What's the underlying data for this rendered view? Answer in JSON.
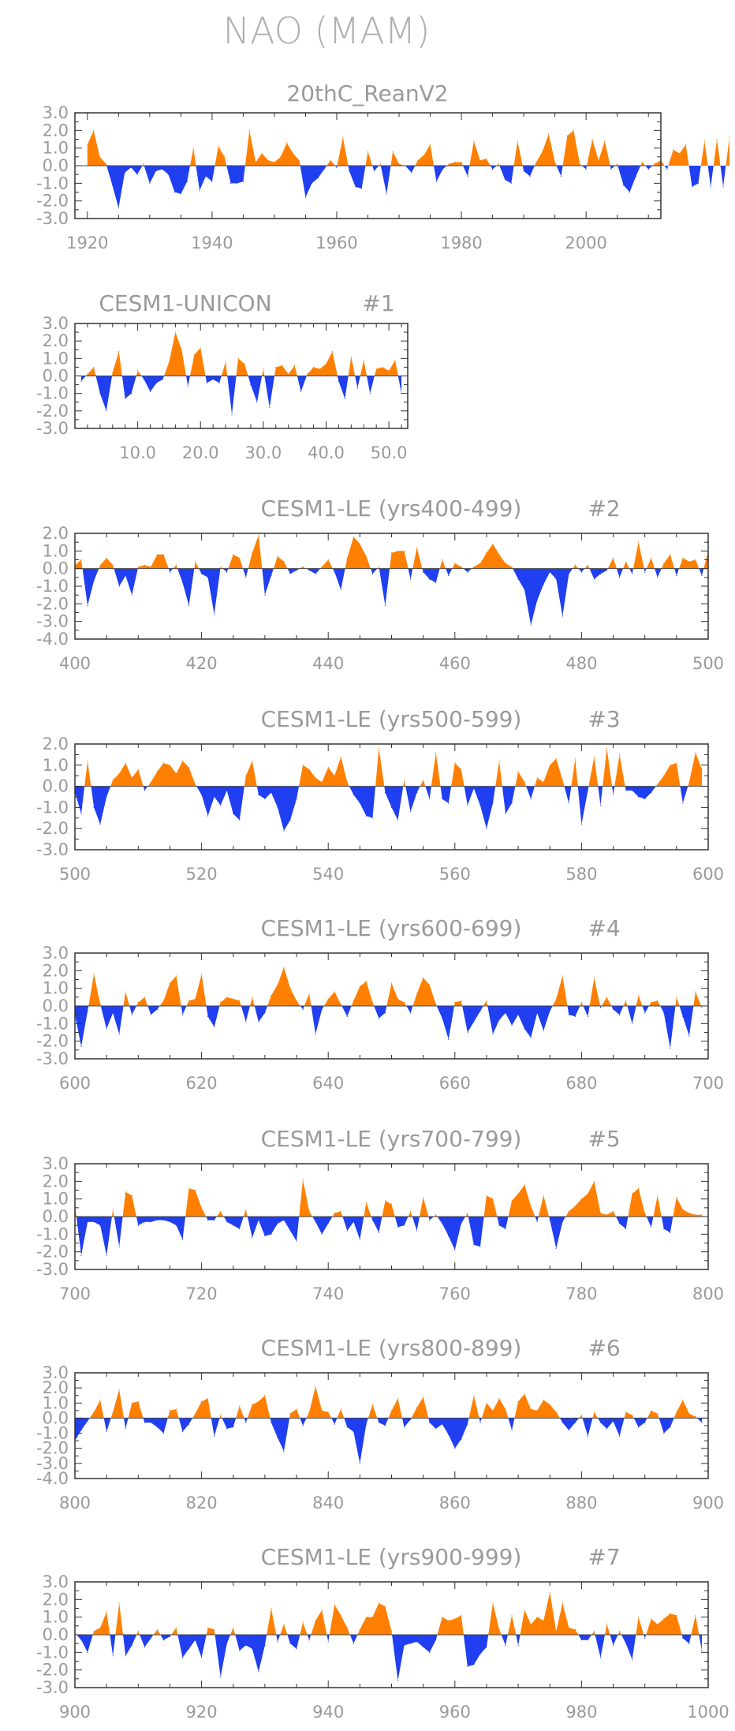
{
  "page_title": "NAO (MAM)",
  "colors": {
    "positive": "#ff8000",
    "negative": "#1f3ff0",
    "axis": "#333333",
    "text": "#9a9a9a"
  },
  "chart_data": [
    {
      "type": "area",
      "title": "20thC_ReanV2",
      "xlabel": "",
      "ylabel": "",
      "xlim": [
        1918,
        2012
      ],
      "ylim": [
        -3,
        3
      ],
      "xticks": [
        1920,
        1940,
        1960,
        1980,
        2000
      ],
      "xtick_labels": [
        "1920",
        "1940",
        "1960",
        "1980",
        "2000"
      ],
      "yticks": [
        3,
        2,
        1,
        0,
        -1,
        -2,
        -3
      ],
      "ytick_labels": [
        "3.0",
        "2.0",
        "1.0",
        "0.0",
        "-1.0",
        "-2.0",
        "-3.0"
      ],
      "x_start": 1920,
      "values": [
        1.2,
        2.0,
        0.5,
        0.1,
        -1.1,
        -2.4,
        -0.4,
        -0.1,
        -0.5,
        0.1,
        -1.0,
        -0.3,
        -0.2,
        -0.5,
        -1.5,
        -1.6,
        -0.9,
        1.0,
        -1.4,
        -0.6,
        -0.9,
        1.1,
        0.5,
        -1.0,
        -1.0,
        -0.9,
        2.0,
        0.2,
        0.7,
        0.3,
        0.2,
        0.5,
        1.3,
        0.7,
        0.3,
        -1.8,
        -1.0,
        -0.7,
        -0.2,
        0.3,
        -0.1,
        1.6,
        -0.3,
        -1.2,
        -1.3,
        0.8,
        -0.3,
        0.1,
        -1.6,
        0.8,
        0.1,
        0.0,
        -0.4,
        0.3,
        0.6,
        1.2,
        -0.9,
        -0.2,
        0.1,
        0.2,
        0.2,
        -0.6,
        1.4,
        0.3,
        0.4,
        -0.2,
        0.1,
        -0.8,
        -1.0,
        1.4,
        -0.3,
        -0.6,
        0.2,
        0.8,
        1.8,
        0.2,
        -0.6,
        1.7,
        2.0,
        0.1,
        -0.2,
        1.5,
        0.3,
        1.4,
        -0.2,
        0.1,
        -1.1,
        -1.5,
        -0.6,
        0.2,
        -0.2,
        0.1,
        0.3,
        -0.2,
        0.9,
        0.7,
        1.2,
        -1.2,
        -1.0,
        1.4,
        -1.2,
        1.5,
        -1.2,
        1.6
      ]
    },
    {
      "type": "area",
      "title": "CESM1-UNICON",
      "tag": "#1",
      "xlabel": "",
      "ylabel": "",
      "xlim": [
        0,
        53
      ],
      "ylim": [
        -3,
        3
      ],
      "xticks": [
        10,
        20,
        30,
        40,
        50
      ],
      "xtick_labels": [
        "10.0",
        "20.0",
        "30.0",
        "40.0",
        "50.0"
      ],
      "yticks": [
        3,
        2,
        1,
        0,
        -1,
        -2,
        -3
      ],
      "ytick_labels": [
        "3.0",
        "2.0",
        "1.0",
        "0.0",
        "-1.0",
        "-2.0",
        "-3.0"
      ],
      "x_start": 1,
      "values": [
        -0.3,
        0.1,
        0.5,
        -1.0,
        -2.0,
        0.2,
        1.4,
        -1.3,
        -1.0,
        0.3,
        -0.2,
        -0.9,
        -0.4,
        -0.2,
        0.8,
        2.5,
        1.5,
        -0.6,
        1.2,
        1.6,
        -0.4,
        -0.2,
        -0.4,
        0.8,
        -2.2,
        1.0,
        0.7,
        -0.5,
        -1.5,
        0.4,
        -1.8,
        0.5,
        0.6,
        0.1,
        0.6,
        -0.9,
        0.1,
        0.5,
        0.4,
        0.7,
        1.4,
        -0.3,
        -1.3,
        1.1,
        -0.7,
        0.9,
        -1.0,
        0.4,
        0.5,
        0.3,
        0.9,
        -1.0
      ]
    },
    {
      "type": "area",
      "title": "CESM1-LE (yrs400-499)",
      "tag": "#2",
      "xlabel": "",
      "ylabel": "",
      "xlim": [
        400,
        500
      ],
      "ylim": [
        -4,
        2
      ],
      "xticks": [
        400,
        420,
        440,
        460,
        480,
        500
      ],
      "xtick_labels": [
        "400",
        "420",
        "440",
        "460",
        "480",
        "500"
      ],
      "yticks": [
        2,
        1,
        0,
        -1,
        -2,
        -3,
        -4
      ],
      "ytick_labels": [
        "2.0",
        "1.0",
        "0.0",
        "-1.0",
        "-2.0",
        "-3.0",
        "-4.0"
      ],
      "x_start": 400,
      "values": [
        0.2,
        0.5,
        -2.1,
        -0.7,
        0.2,
        0.6,
        0.2,
        -1.0,
        -0.4,
        -1.5,
        0.1,
        0.2,
        0.1,
        0.8,
        0.8,
        -0.2,
        0.2,
        -0.8,
        -2.1,
        0.4,
        -0.3,
        -0.5,
        -2.6,
        0.1,
        -0.2,
        0.8,
        0.6,
        -0.5,
        0.9,
        1.9,
        -1.5,
        -0.4,
        0.7,
        0.4,
        -0.3,
        -0.1,
        0.1,
        -0.1,
        -0.3,
        0.1,
        0.5,
        -0.2,
        -1.2,
        0.6,
        1.8,
        1.4,
        0.7,
        -0.3,
        0.1,
        -2.1,
        0.9,
        1.0,
        1.0,
        -0.6,
        1.2,
        -0.2,
        -0.6,
        -0.8,
        0.5,
        -0.4,
        0.3,
        0.1,
        -0.2,
        0.1,
        0.3,
        0.9,
        1.4,
        0.8,
        0.3,
        0.1,
        -0.6,
        -1.2,
        -3.2,
        -1.8,
        -0.9,
        -0.2,
        -0.6,
        -2.7,
        -0.3,
        0.2,
        -0.2,
        0.2,
        -0.6,
        -0.3,
        -0.1,
        0.6,
        -0.5,
        0.4,
        -0.3,
        1.5,
        -0.2,
        0.6,
        -0.5,
        0.3,
        0.8,
        -0.4,
        0.6,
        0.4,
        0.5,
        -0.4,
        1.0
      ]
    },
    {
      "type": "area",
      "title": "CESM1-LE (yrs500-599)",
      "tag": "#3",
      "xlabel": "",
      "ylabel": "",
      "xlim": [
        500,
        600
      ],
      "ylim": [
        -3,
        2
      ],
      "xticks": [
        500,
        520,
        540,
        560,
        580,
        600
      ],
      "xtick_labels": [
        "500",
        "520",
        "540",
        "560",
        "580",
        "600"
      ],
      "yticks": [
        2,
        1,
        0,
        -1,
        -2,
        -3
      ],
      "ytick_labels": [
        "2.0",
        "1.0",
        "0.0",
        "-1.0",
        "-2.0",
        "-3.0"
      ],
      "x_start": 500,
      "values": [
        -0.3,
        -1.3,
        1.2,
        -1.0,
        -1.8,
        -0.5,
        0.3,
        0.6,
        1.1,
        0.4,
        0.8,
        -0.2,
        0.2,
        0.7,
        1.1,
        1.0,
        0.6,
        1.2,
        0.9,
        0.1,
        -0.4,
        -1.4,
        -0.5,
        -0.9,
        -0.2,
        -1.3,
        -1.6,
        0.5,
        1.2,
        -0.4,
        -0.6,
        -0.3,
        -1.0,
        -2.1,
        -1.6,
        -0.6,
        1.0,
        0.8,
        0.4,
        0.2,
        0.9,
        0.5,
        1.4,
        0.2,
        -0.4,
        -0.8,
        -1.4,
        -1.5,
        1.8,
        -0.3,
        -1.0,
        -1.6,
        0.3,
        -1.2,
        -0.3,
        0.3,
        -0.6,
        1.6,
        -0.6,
        -0.8,
        1.1,
        0.8,
        -0.9,
        -0.1,
        -0.9,
        -2.0,
        -0.8,
        1.2,
        -1.3,
        -0.8,
        0.7,
        0.2,
        -0.6,
        0.4,
        0.2,
        1.0,
        1.3,
        0.3,
        -0.8,
        1.3,
        -1.8,
        -0.2,
        1.4,
        -0.9,
        1.8,
        -0.4,
        1.5,
        -0.2,
        -0.2,
        -0.5,
        -0.6,
        -0.3,
        0.1,
        0.5,
        1.0,
        1.1,
        -0.8,
        0.2,
        1.6,
        0.8
      ]
    },
    {
      "type": "area",
      "title": "CESM1-LE (yrs600-699)",
      "tag": "#4",
      "xlabel": "",
      "ylabel": "",
      "xlim": [
        600,
        700
      ],
      "ylim": [
        -3,
        3
      ],
      "xticks": [
        600,
        620,
        640,
        660,
        680,
        700
      ],
      "xtick_labels": [
        "600",
        "620",
        "640",
        "660",
        "680",
        "700"
      ],
      "yticks": [
        3,
        2,
        1,
        0,
        -1,
        -2,
        -3
      ],
      "ytick_labels": [
        "3.0",
        "2.0",
        "1.0",
        "0.0",
        "-1.0",
        "-2.0",
        "-3.0"
      ],
      "x_start": 600,
      "values": [
        -0.5,
        -2.3,
        -0.3,
        1.8,
        0.1,
        -1.3,
        -0.4,
        -1.6,
        0.8,
        -0.5,
        0.2,
        0.5,
        -0.5,
        -0.2,
        0.3,
        1.3,
        1.7,
        -0.5,
        0.3,
        0.4,
        1.8,
        -0.6,
        -1.2,
        0.2,
        0.5,
        0.4,
        0.3,
        -0.9,
        0.5,
        -0.9,
        -0.4,
        0.6,
        1.2,
        2.2,
        1.0,
        0.3,
        -0.2,
        0.7,
        -1.6,
        -0.2,
        0.4,
        0.8,
        0.1,
        -0.6,
        0.3,
        1.1,
        1.4,
        0.2,
        -0.7,
        -0.4,
        1.3,
        0.4,
        0.2,
        -0.4,
        0.7,
        1.6,
        1.2,
        0.1,
        -0.7,
        -1.9,
        0.2,
        0.3,
        -1.5,
        -0.9,
        -0.3,
        0.3,
        -1.6,
        -0.8,
        -0.4,
        -1.1,
        -0.5,
        -1.3,
        -1.8,
        -0.4,
        -1.4,
        -0.3,
        0.4,
        1.7,
        -0.5,
        -0.6,
        0.2,
        -0.6,
        1.6,
        -0.1,
        0.5,
        -0.2,
        -0.5,
        0.3,
        -1.0,
        0.6,
        -0.4,
        0.2,
        0.3,
        -0.4,
        -2.4,
        0.5,
        -0.6,
        -1.7,
        0.8,
        -0.1
      ]
    },
    {
      "type": "area",
      "title": "CESM1-LE (yrs700-799)",
      "tag": "#5",
      "xlabel": "",
      "ylabel": "",
      "xlim": [
        700,
        800
      ],
      "ylim": [
        -3,
        3
      ],
      "xticks": [
        700,
        720,
        740,
        760,
        780,
        800
      ],
      "xtick_labels": [
        "700",
        "720",
        "740",
        "760",
        "780",
        "800"
      ],
      "yticks": [
        3,
        2,
        1,
        0,
        -1,
        -2,
        -3
      ],
      "ytick_labels": [
        "3.0",
        "2.0",
        "1.0",
        "0.0",
        "-1.0",
        "-2.0",
        "-3.0"
      ],
      "x_start": 700,
      "values": [
        0.7,
        -2.2,
        -0.3,
        -0.3,
        -0.5,
        -2.2,
        0.4,
        -1.7,
        1.4,
        1.2,
        -0.5,
        -0.3,
        -0.3,
        -0.2,
        -0.2,
        -0.3,
        -0.5,
        -1.3,
        1.6,
        1.5,
        0.5,
        -0.2,
        -0.2,
        0.3,
        -0.3,
        -0.5,
        -0.7,
        0.4,
        -1.2,
        -0.2,
        -1.1,
        -1.0,
        -0.4,
        -0.2,
        -0.8,
        -1.4,
        2.1,
        0.3,
        -0.3,
        -1.0,
        -0.4,
        0.2,
        0.3,
        -0.8,
        -0.3,
        -1.3,
        0.8,
        -0.2,
        -0.9,
        0.9,
        0.7,
        -0.6,
        -0.5,
        0.3,
        -0.8,
        1.1,
        -0.2,
        0.1,
        -0.4,
        -1.1,
        -1.9,
        -0.4,
        0.2,
        -1.6,
        -1.7,
        1.2,
        1.0,
        -0.5,
        -0.7,
        0.9,
        1.3,
        1.8,
        0.6,
        -0.3,
        1.2,
        -0.2,
        -1.8,
        -0.3,
        0.3,
        0.6,
        1.0,
        1.3,
        2.0,
        0.2,
        0.1,
        0.3,
        -0.4,
        -0.7,
        1.3,
        1.6,
        0.2,
        -0.6,
        1.2,
        -0.7,
        -0.9,
        1.1,
        0.4,
        0.2,
        0.1,
        0.1
      ]
    },
    {
      "type": "area",
      "title": "CESM1-LE (yrs800-899)",
      "tag": "#6",
      "xlabel": "",
      "ylabel": "",
      "xlim": [
        800,
        900
      ],
      "ylim": [
        -4,
        3
      ],
      "xticks": [
        800,
        820,
        840,
        860,
        880,
        900
      ],
      "xtick_labels": [
        "800",
        "820",
        "840",
        "860",
        "880",
        "900"
      ],
      "yticks": [
        3,
        2,
        1,
        0,
        -1,
        -2,
        -3,
        -4
      ],
      "ytick_labels": [
        "3.0",
        "2.0",
        "1.0",
        "0.0",
        "-1.0",
        "-2.0",
        "-3.0",
        "-4.0"
      ],
      "x_start": 800,
      "values": [
        -1.5,
        -0.8,
        -0.2,
        0.4,
        1.2,
        -0.9,
        0.4,
        1.9,
        -0.7,
        1.0,
        1.1,
        -0.3,
        -0.3,
        -0.6,
        -1.0,
        0.5,
        0.6,
        -0.9,
        -0.4,
        0.3,
        1.1,
        1.3,
        -1.2,
        0.2,
        -0.7,
        -0.6,
        0.8,
        -0.3,
        0.9,
        1.1,
        1.5,
        -0.3,
        -1.3,
        -2.2,
        0.3,
        0.6,
        -0.5,
        0.4,
        2.1,
        0.5,
        0.4,
        -0.4,
        0.6,
        -0.6,
        -0.9,
        -3.0,
        -0.4,
        0.9,
        -0.3,
        -0.5,
        0.5,
        1.3,
        -0.6,
        -0.1,
        0.7,
        1.4,
        -0.3,
        -0.7,
        -0.4,
        -1.1,
        -2.0,
        -1.4,
        -0.4,
        1.5,
        -0.3,
        1.0,
        0.5,
        1.3,
        0.6,
        -0.8,
        1.1,
        1.6,
        0.6,
        0.5,
        1.2,
        0.9,
        0.4,
        -0.3,
        -0.8,
        -0.3,
        0.2,
        -1.2,
        0.4,
        -0.3,
        -0.7,
        -0.2,
        -1.2,
        0.4,
        0.2,
        -0.6,
        -0.3,
        0.5,
        0.3,
        -1.0,
        -0.6,
        0.4,
        1.2,
        0.3,
        0.1,
        -0.3
      ]
    },
    {
      "type": "area",
      "title": "CESM1-LE (yrs900-999)",
      "tag": "#7",
      "xlabel": "",
      "ylabel": "",
      "xlim": [
        900,
        1000
      ],
      "ylim": [
        -3,
        3
      ],
      "xticks": [
        900,
        920,
        940,
        960,
        980,
        1000
      ],
      "xtick_labels": [
        "900",
        "920",
        "940",
        "960",
        "980",
        "1000"
      ],
      "yticks": [
        3,
        2,
        1,
        0,
        -1,
        -2,
        -3
      ],
      "ytick_labels": [
        "3.0",
        "2.0",
        "1.0",
        "0.0",
        "-1.0",
        "-2.0",
        "-3.0"
      ],
      "x_start": 900,
      "values": [
        0.1,
        -0.3,
        -1.0,
        0.2,
        0.4,
        1.3,
        -1.2,
        1.8,
        -1.2,
        -0.6,
        0.2,
        -0.7,
        -0.2,
        0.3,
        -0.3,
        -0.1,
        0.4,
        -1.3,
        -0.8,
        -0.3,
        -1.3,
        0.4,
        0.3,
        -2.4,
        -0.5,
        0.4,
        -0.9,
        -0.6,
        -0.8,
        -2.1,
        -0.6,
        1.5,
        -0.4,
        0.6,
        -0.5,
        -0.8,
        0.7,
        -0.3,
        0.8,
        1.4,
        -0.4,
        1.7,
        1.1,
        0.4,
        -0.5,
        0.3,
        1.0,
        1.0,
        1.8,
        1.6,
        0.2,
        -2.6,
        -0.6,
        -0.5,
        -0.4,
        -0.7,
        -1.0,
        -0.3,
        1.0,
        0.8,
        0.9,
        1.1,
        -1.8,
        -1.7,
        -1.1,
        -0.7,
        1.8,
        0.3,
        -0.6,
        1.1,
        -0.6,
        1.4,
        0.6,
        1.0,
        0.8,
        2.4,
        0.2,
        1.8,
        0.4,
        0.3,
        -0.3,
        -0.3,
        0.2,
        -1.3,
        0.6,
        -0.6,
        0.2,
        -0.5,
        -1.4,
        1.0,
        -0.2,
        0.9,
        0.6,
        0.9,
        1.2,
        1.1,
        -0.2,
        -0.5,
        1.1,
        -0.9
      ]
    }
  ]
}
